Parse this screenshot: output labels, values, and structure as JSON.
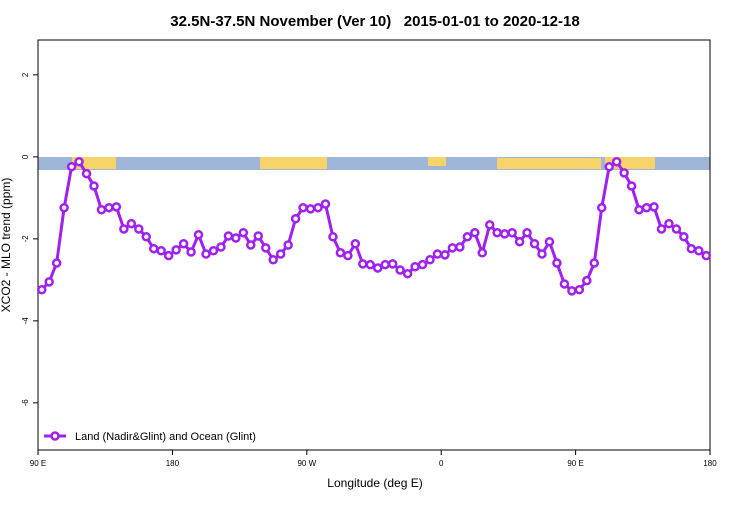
{
  "chart_data": {
    "type": "line",
    "title": "32.5N-37.5N November (Ver 10)   2015-01-01 to 2020-12-18",
    "x_label": "Longitude (deg E)",
    "y_label": "XCO2 - MLO trend (ppm)",
    "xlim": [
      90,
      540
    ],
    "xticks": [
      {
        "value": 90,
        "label": "90 E"
      },
      180,
      {
        "value": 270,
        "label": "90 W"
      },
      {
        "value": 360,
        "label": "0"
      },
      {
        "value": 450,
        "label": "90 E"
      },
      {
        "value": 540,
        "label": "180"
      }
    ],
    "ylim": [
      -7.15,
      2.85
    ],
    "yticks": [
      2,
      0,
      -2,
      -4,
      -6
    ],
    "legend": "bottom-left",
    "x": [
      92.5,
      97.5,
      102.5,
      107.5,
      112.5,
      117.5,
      122.5,
      127.5,
      132.5,
      137.5,
      142.5,
      147.5,
      152.5,
      157.5,
      162.5,
      167.5,
      172.5,
      177.5,
      182.5,
      187.5,
      192.5,
      197.5,
      202.5,
      207.5,
      212.5,
      217.5,
      222.5,
      227.5,
      232.5,
      237.5,
      242.5,
      247.5,
      252.5,
      257.5,
      262.5,
      267.5,
      272.5,
      277.5,
      282.5,
      287.5,
      292.5,
      297.5,
      302.5,
      307.5,
      312.5,
      317.5,
      322.5,
      327.5,
      332.5,
      337.5,
      342.5,
      347.5,
      352.5,
      357.5,
      362.5,
      367.5,
      372.5,
      377.5,
      382.5,
      387.5,
      392.5,
      397.5,
      402.5,
      407.5,
      412.5,
      417.5,
      422.5,
      427.5,
      432.5,
      437.5,
      442.5,
      447.5,
      452.5,
      457.5,
      462.5,
      467.5,
      472.5,
      477.5,
      482.5,
      487.5,
      492.5,
      497.5,
      502.5,
      507.5,
      512.5,
      517.5,
      522.5,
      527.5,
      532.5,
      537.5
    ],
    "series": [
      {
        "name": "Land (Nadir&Glint) and Ocean (Glint)",
        "color": "#a020f0",
        "values": [
          -3.24,
          -3.05,
          -2.59,
          -1.24,
          -0.24,
          -0.12,
          -0.41,
          -0.71,
          -1.29,
          -1.24,
          -1.22,
          -1.76,
          -1.63,
          -1.76,
          -1.95,
          -2.24,
          -2.29,
          -2.41,
          -2.27,
          -2.12,
          -2.32,
          -1.9,
          -2.37,
          -2.29,
          -2.2,
          -1.93,
          -1.98,
          -1.85,
          -2.15,
          -1.93,
          -2.22,
          -2.51,
          -2.37,
          -2.15,
          -1.51,
          -1.24,
          -1.27,
          -1.24,
          -1.15,
          -1.95,
          -2.34,
          -2.41,
          -2.12,
          -2.61,
          -2.63,
          -2.71,
          -2.63,
          -2.61,
          -2.76,
          -2.85,
          -2.68,
          -2.63,
          -2.51,
          -2.37,
          -2.39,
          -2.22,
          -2.2,
          -1.95,
          -1.85,
          -2.34,
          -1.66,
          -1.85,
          -1.88,
          -1.85,
          -2.07,
          -1.85,
          -2.12,
          -2.37,
          -2.07,
          -2.59,
          -3.1,
          -3.27,
          -3.24,
          -3.02,
          -2.59,
          -1.24,
          -0.24,
          -0.12,
          -0.39,
          -0.71,
          -1.29,
          -1.24,
          -1.22,
          -1.76,
          -1.63,
          -1.76,
          -1.95,
          -2.24,
          -2.29,
          -2.41
        ]
      }
    ]
  }
}
